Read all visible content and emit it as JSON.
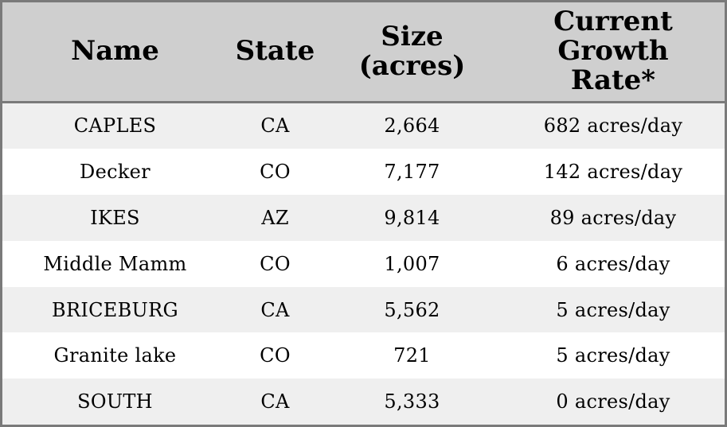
{
  "chart_data": {
    "type": "table",
    "columns": [
      "Name",
      "State",
      "Size\n(acres)",
      "Current\nGrowth\nRate*"
    ],
    "rows": [
      [
        "CAPLES",
        "CA",
        "2,664",
        "682 acres/day"
      ],
      [
        "Decker",
        "CO",
        "7,177",
        "142 acres/day"
      ],
      [
        "IKES",
        "AZ",
        "9,814",
        "89 acres/day"
      ],
      [
        "Middle Mamm",
        "CO",
        "1,007",
        "6 acres/day"
      ],
      [
        "BRICEBURG",
        "CA",
        "5,562",
        "5 acres/day"
      ],
      [
        "Granite lake",
        "CO",
        "721",
        "5 acres/day"
      ],
      [
        "SOUTH",
        "CA",
        "5,333",
        "0 acres/day"
      ]
    ]
  },
  "colors": {
    "header_bg": "#cfcfcf",
    "border": "#7a7a7a",
    "row_alt_bg": "#efefef",
    "row_bg": "#ffffff",
    "text": "#000000"
  }
}
